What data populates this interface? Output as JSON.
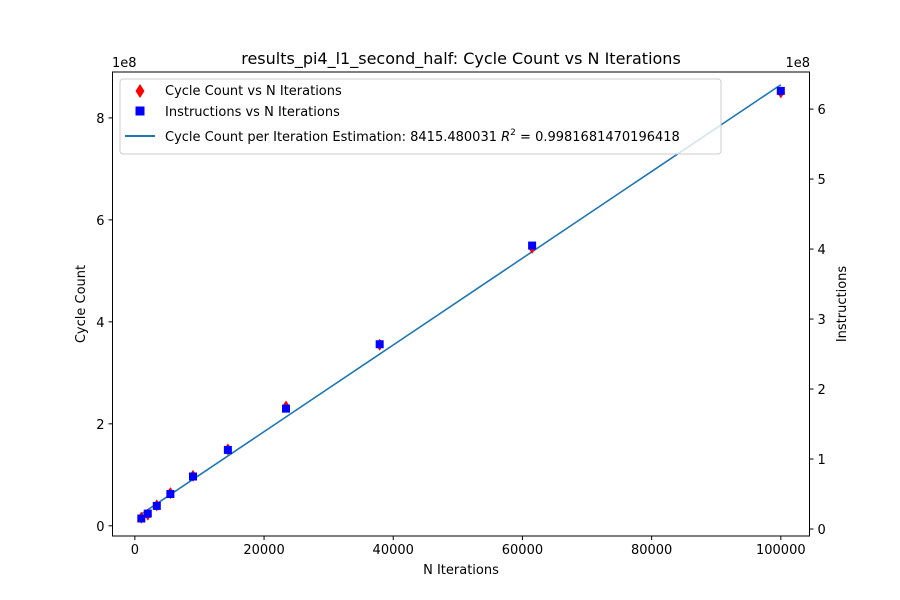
{
  "chart_data": {
    "type": "scatter",
    "title": "results_pi4_l1_second_half: Cycle Count vs N Iterations",
    "xlabel": "N Iterations",
    "ylabel": "Cycle Count",
    "y2label": "Instructions",
    "xlim": [
      -3460,
      104440
    ],
    "ylim": [
      -20000000,
      890000000
    ],
    "y2lim": [
      -10000000,
      653000000
    ],
    "y_offset_text": "1e8",
    "y2_offset_text": "1e8",
    "xticks": [
      0,
      20000,
      40000,
      60000,
      80000,
      100000
    ],
    "xtick_labels": [
      "0",
      "20000",
      "40000",
      "60000",
      "80000",
      "100000"
    ],
    "yticks": [
      0,
      200000000,
      400000000,
      600000000,
      800000000
    ],
    "ytick_labels": [
      "0",
      "2",
      "4",
      "6",
      "8"
    ],
    "y2ticks": [
      0,
      100000000,
      200000000,
      300000000,
      400000000,
      500000000,
      600000000
    ],
    "y2tick_labels": [
      "0",
      "1",
      "2",
      "3",
      "4",
      "5",
      "6"
    ],
    "grid": false,
    "legend_position": "top-left",
    "series": [
      {
        "name": "Cycle Count vs N Iterations",
        "axis": "left",
        "marker": "diamond",
        "color": "#ff0000",
        "x": [
          1000,
          2000,
          3400,
          5500,
          9000,
          14400,
          23400,
          37900,
          61500,
          100000
        ],
        "y": [
          16000000,
          22000000,
          40000000,
          64000000,
          98000000,
          150000000,
          234000000,
          355000000,
          545000000,
          850000000
        ]
      },
      {
        "name": "Instructions vs N Iterations",
        "axis": "right",
        "marker": "square",
        "color": "#0000ff",
        "x": [
          1000,
          2000,
          3400,
          5500,
          9000,
          14400,
          23400,
          37900,
          61500,
          100000
        ],
        "y": [
          15000000,
          22000000,
          33000000,
          50000000,
          75000000,
          113000000,
          172000000,
          264000000,
          405000000,
          626000000
        ]
      },
      {
        "name": "Cycle Count per Iteration Estimation: 8415.480031 R² = 0.9981681470196418",
        "axis": "left",
        "type": "line",
        "color": "#1f77b4",
        "x": [
          1000,
          100000
        ],
        "y": [
          23000000,
          865000000
        ]
      }
    ]
  }
}
